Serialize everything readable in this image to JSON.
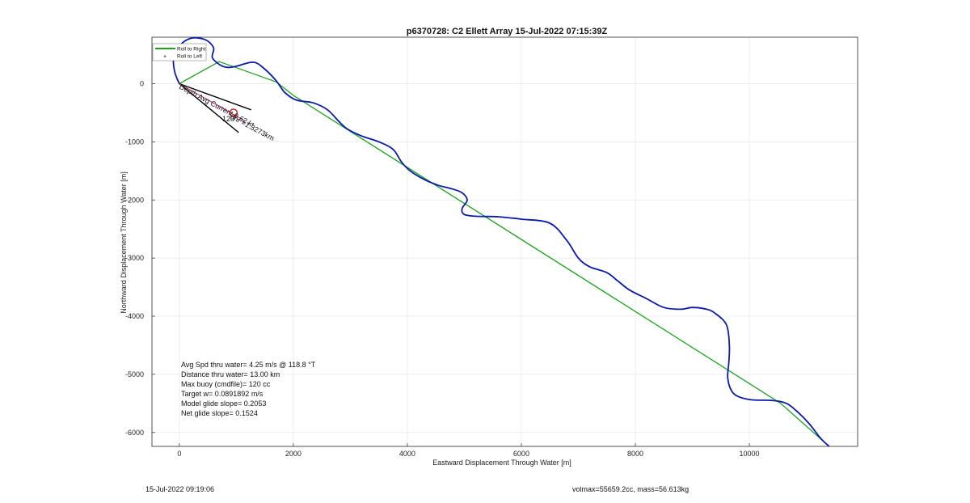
{
  "chart_data": {
    "type": "line",
    "title": "p6370728: C2 Ellett Array 15-Jul-2022 07:15:39Z",
    "xlabel": "Eastward Displacement Through Water [m]",
    "ylabel": "Northward Displacement Through Water [m]",
    "xlim": [
      -480,
      11900
    ],
    "ylim": [
      -6240,
      800
    ],
    "xticks": [
      0,
      2000,
      4000,
      6000,
      8000,
      10000
    ],
    "yticks": [
      0,
      -1000,
      -2000,
      -3000,
      -4000,
      -5000,
      -6000
    ],
    "grid": true,
    "legend_position": "top-left",
    "legend": [
      "Roll to Right",
      "Roll to Left"
    ],
    "series": [
      {
        "name": "Roll to Right",
        "color": "#1aa31a",
        "x": [
          0,
          700,
          1700,
          2000,
          10550,
          11400
        ],
        "y": [
          0,
          380,
          30,
          -200,
          -5500,
          -6240
        ]
      },
      {
        "color": "#0a1aaa",
        "x": [
          0,
          -80,
          -100,
          0,
          200,
          450,
          600,
          580,
          720,
          850,
          1000,
          1300,
          1500,
          1700,
          1850,
          2050,
          2350,
          2600,
          2800,
          2950,
          3200,
          3500,
          3750,
          3900,
          4050,
          4300,
          4550,
          4750,
          4950,
          5050,
          4960,
          5000,
          5200,
          5600,
          6000,
          6500,
          6800,
          7000,
          7200,
          7500,
          7700,
          7900,
          8200,
          8500,
          8800,
          9000,
          9250,
          9400,
          9600,
          9650,
          9640,
          9620,
          9680,
          9800,
          10050,
          10400,
          10650,
          10850,
          11050,
          11250,
          11400
        ],
        "y": [
          0,
          200,
          450,
          650,
          780,
          760,
          620,
          450,
          320,
          280,
          300,
          370,
          250,
          50,
          -150,
          -280,
          -330,
          -450,
          -650,
          -780,
          -900,
          -1000,
          -1130,
          -1350,
          -1500,
          -1650,
          -1750,
          -1800,
          -1870,
          -2000,
          -2150,
          -2250,
          -2280,
          -2290,
          -2330,
          -2400,
          -2700,
          -3000,
          -3150,
          -3250,
          -3400,
          -3550,
          -3700,
          -3850,
          -3880,
          -3850,
          -3880,
          -3950,
          -4150,
          -4500,
          -4800,
          -5050,
          -5270,
          -5380,
          -5440,
          -5450,
          -5500,
          -5650,
          -5850,
          -6100,
          -6240
        ]
      }
    ],
    "annotations": [
      "Depth Avg Current 0.62 kt",
      "120",
      "6hr =1.3273km"
    ],
    "stats": [
      "Avg Spd thru water=  4.25 m/s @ 118.8 °T",
      "Distance thru water= 13.00 km",
      "Max buoy (cmdfile)= 120 cc",
      "Target w= 0.0891892 m/s",
      "Model glide slope= 0.2053",
      "Net glide slope= 0.1524"
    ]
  },
  "footer": {
    "timestamp": "15-Jul-2022 09:19:06",
    "volmass": "volmax=55659.2cc, mass=56.613kg"
  }
}
